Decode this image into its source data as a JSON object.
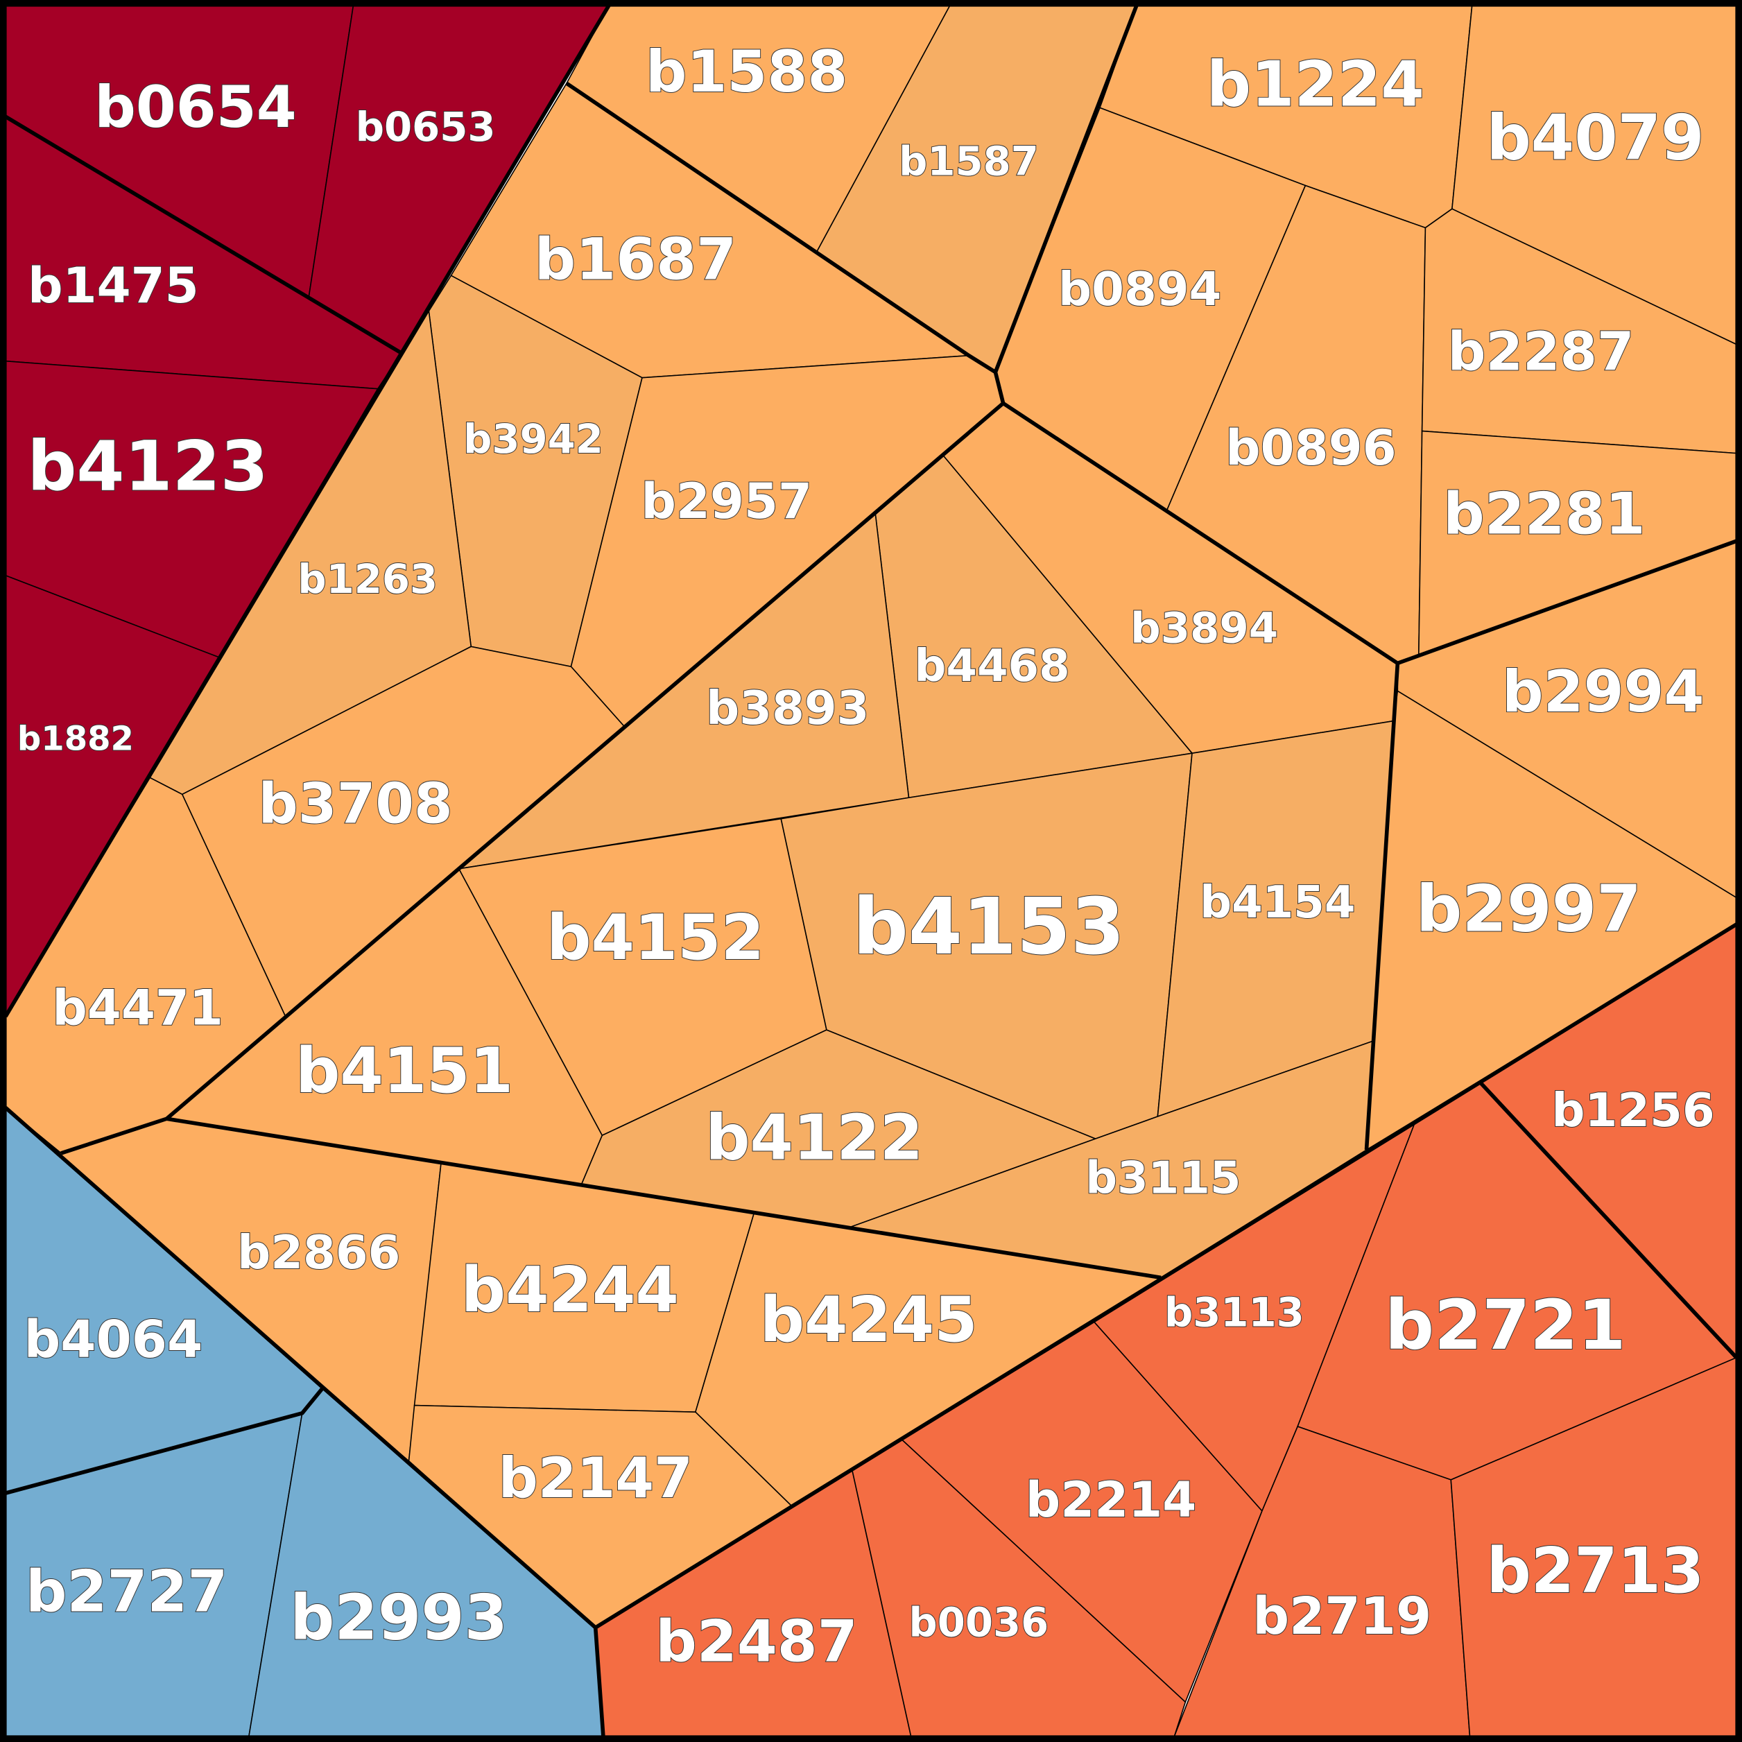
{
  "cells": [
    {
      "label": "b0654"
    },
    {
      "label": "b0653"
    },
    {
      "label": "b1475"
    },
    {
      "label": "b4123"
    },
    {
      "label": "b1882"
    },
    {
      "label": "b4064"
    },
    {
      "label": "b2727"
    },
    {
      "label": "b2993"
    },
    {
      "label": "b2487"
    },
    {
      "label": "b0036"
    },
    {
      "label": "b2214"
    },
    {
      "label": "b3113"
    },
    {
      "label": "b2721"
    },
    {
      "label": "b1256"
    },
    {
      "label": "b2719"
    },
    {
      "label": "b2713"
    },
    {
      "label": "b1588"
    },
    {
      "label": "b1587"
    },
    {
      "label": "b1687"
    },
    {
      "label": "b3942"
    },
    {
      "label": "b1263"
    },
    {
      "label": "b2957"
    },
    {
      "label": "b1224"
    },
    {
      "label": "b4079"
    },
    {
      "label": "b0894"
    },
    {
      "label": "b0896"
    },
    {
      "label": "b2287"
    },
    {
      "label": "b2281"
    },
    {
      "label": "b2994"
    },
    {
      "label": "b2997"
    },
    {
      "label": "b3894"
    },
    {
      "label": "b4468"
    },
    {
      "label": "b3893"
    },
    {
      "label": "b3708"
    },
    {
      "label": "b4471"
    },
    {
      "label": "b4152"
    },
    {
      "label": "b4153"
    },
    {
      "label": "b4154"
    },
    {
      "label": "b4151"
    },
    {
      "label": "b4122"
    },
    {
      "label": "b3115"
    },
    {
      "label": "b2866"
    },
    {
      "label": "b4244"
    },
    {
      "label": "b4245"
    },
    {
      "label": "b2147"
    }
  ]
}
